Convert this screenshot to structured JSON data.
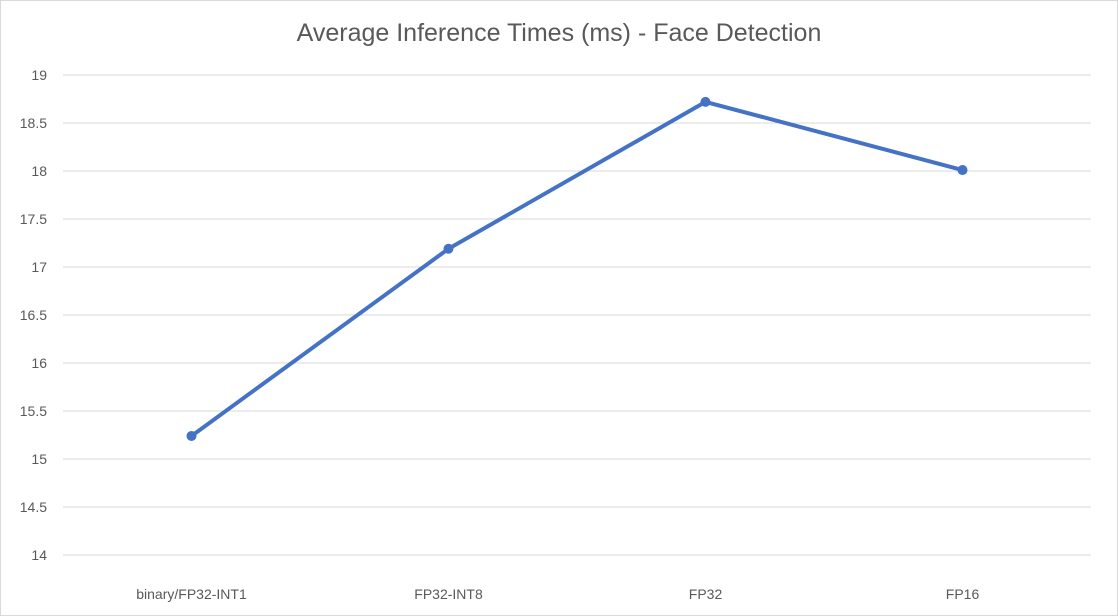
{
  "chart_data": {
    "type": "line",
    "title": "Average Inference Times (ms) - Face Detection",
    "xlabel": "",
    "ylabel": "",
    "categories": [
      "binary/FP32-INT1",
      "FP32-INT8",
      "FP32",
      "FP16"
    ],
    "series": [
      {
        "values": [
          15.24,
          17.19,
          18.72,
          18.01
        ],
        "color": "#4472c4"
      }
    ],
    "ylim": [
      14,
      19
    ],
    "ytick_step": 0.5,
    "yticks": [
      "14",
      "14.5",
      "15",
      "15.5",
      "16",
      "16.5",
      "17",
      "17.5",
      "18",
      "18.5",
      "19"
    ],
    "grid": true,
    "legend": "none",
    "gridline_color": "#d9d9d9",
    "marker": "circle"
  }
}
